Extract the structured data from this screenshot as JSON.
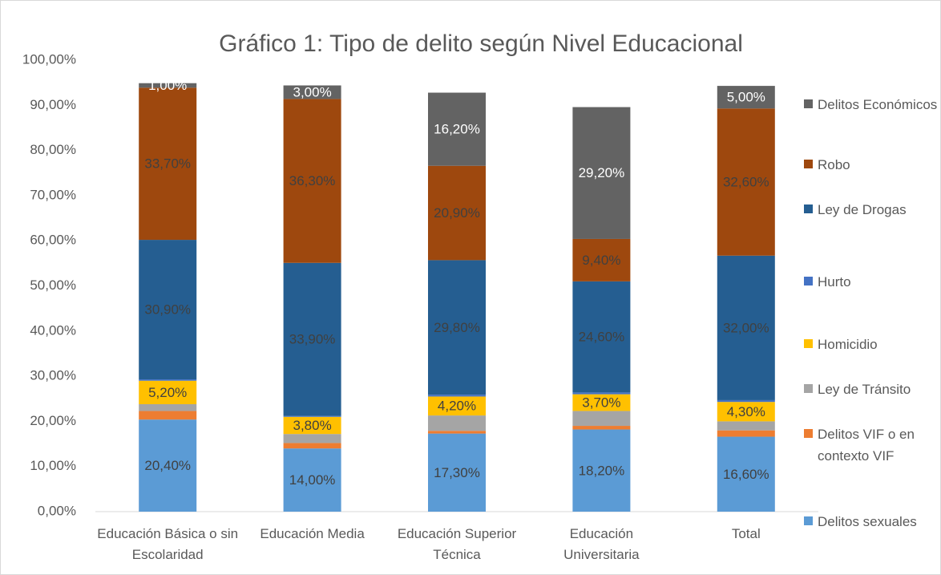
{
  "chart_data": {
    "type": "stacked_bar",
    "title": "Gráfico 1: Tipo de delito según Nivel Educacional",
    "categories": [
      "Educación Básica o sin Escolaridad",
      "Educación Media",
      "Educación Superior Técnica",
      "Educación Universitaria",
      "Total"
    ],
    "series": [
      {
        "name": "Delitos sexuales",
        "color": "#5b9bd5",
        "values": [
          20.4,
          14.0,
          17.3,
          18.2,
          16.6
        ],
        "value_labels": [
          "20,40%",
          "14,00%",
          "17,30%",
          "18,20%",
          "16,60%"
        ]
      },
      {
        "name": "Delitos VIF o en contexto VIF",
        "color": "#ed7d31",
        "values": [
          1.9,
          1.2,
          0.6,
          0.8,
          1.4
        ],
        "value_labels": [
          null,
          null,
          null,
          null,
          null
        ]
      },
      {
        "name": "Ley de Tránsito",
        "color": "#a5a5a5",
        "values": [
          1.5,
          2.0,
          3.4,
          3.3,
          2.0
        ],
        "value_labels": [
          null,
          null,
          null,
          null,
          null
        ]
      },
      {
        "name": "Homicidio",
        "color": "#ffc000",
        "values": [
          5.2,
          3.8,
          4.2,
          3.7,
          4.3
        ],
        "value_labels": [
          "5,20%",
          "3,80%",
          "4,20%",
          "3,70%",
          "4,30%"
        ]
      },
      {
        "name": "Hurto",
        "color": "#4472c4",
        "values": [
          0.3,
          0.2,
          0.4,
          0.4,
          0.4
        ],
        "value_labels": [
          null,
          null,
          null,
          null,
          null
        ]
      },
      {
        "name": "Ley de Drogas",
        "color": "#255e91",
        "values": [
          30.9,
          33.9,
          29.8,
          24.6,
          32.0
        ],
        "value_labels": [
          "30,90%",
          "33,90%",
          "29,80%",
          "24,60%",
          "32,00%"
        ]
      },
      {
        "name": "Robo",
        "color": "#9e480e",
        "values": [
          33.7,
          36.3,
          20.9,
          9.4,
          32.6
        ],
        "value_labels": [
          "33,70%",
          "36,30%",
          "20,90%",
          "9,40%",
          "32,60%"
        ]
      },
      {
        "name": "Delitos Económicos",
        "color": "#636363",
        "values": [
          1.0,
          3.0,
          16.2,
          29.2,
          5.0
        ],
        "value_labels": [
          "1,00%",
          "3,00%",
          "16,20%",
          "29,20%",
          "5,00%"
        ]
      }
    ],
    "ylim": [
      0,
      100
    ],
    "yticks": [
      {
        "value": 0,
        "label": "0,00%"
      },
      {
        "value": 10,
        "label": "10,00%"
      },
      {
        "value": 20,
        "label": "20,00%"
      },
      {
        "value": 30,
        "label": "30,00%"
      },
      {
        "value": 40,
        "label": "40,00%"
      },
      {
        "value": 50,
        "label": "50,00%"
      },
      {
        "value": 60,
        "label": "60,00%"
      },
      {
        "value": 70,
        "label": "70,00%"
      },
      {
        "value": 80,
        "label": "80,00%"
      },
      {
        "value": 90,
        "label": "90,00%"
      },
      {
        "value": 100,
        "label": "100,00%"
      }
    ],
    "legend": "right"
  }
}
